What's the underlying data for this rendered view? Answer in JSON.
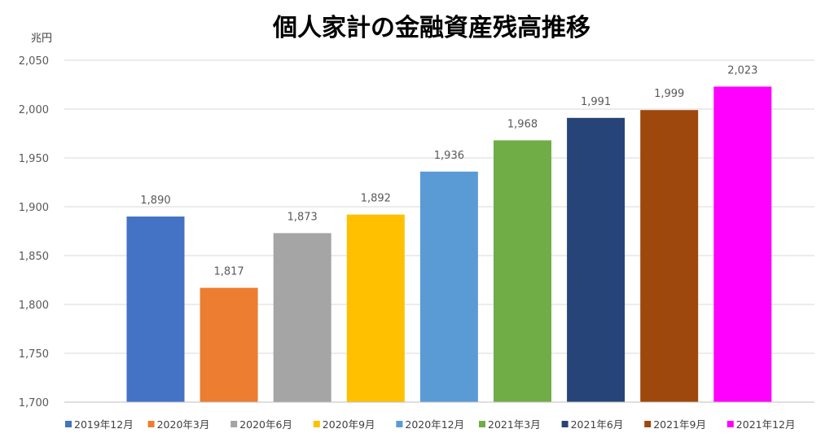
{
  "chart_data": {
    "type": "bar",
    "title": "個人家計の金融資産残高推移",
    "ylabel": "兆円",
    "ylim": [
      1700,
      2050
    ],
    "yticks": [
      1700,
      1750,
      1800,
      1850,
      1900,
      1950,
      2000,
      2050
    ],
    "ytick_labels": [
      "1,700",
      "1,750",
      "1,800",
      "1,850",
      "1,900",
      "1,950",
      "2,000",
      "2,050"
    ],
    "categories": [
      "2019年12月",
      "2020年3月",
      "2020年6月",
      "2020年9月",
      "2020年12月",
      "2021年3月",
      "2021年6月",
      "2021年9月",
      "2021年12月"
    ],
    "values": [
      1890,
      1817,
      1873,
      1892,
      1936,
      1968,
      1991,
      1999,
      2023
    ],
    "value_labels": [
      "1,890",
      "1,817",
      "1,873",
      "1,892",
      "1,936",
      "1,968",
      "1,991",
      "1,999",
      "2,023"
    ],
    "colors": [
      "#4472C4",
      "#ED7D31",
      "#A5A5A5",
      "#FFC000",
      "#5B9BD5",
      "#70AD47",
      "#264478",
      "#9E480E",
      "#FF00FF"
    ],
    "grid": true,
    "legend": "bottom"
  }
}
